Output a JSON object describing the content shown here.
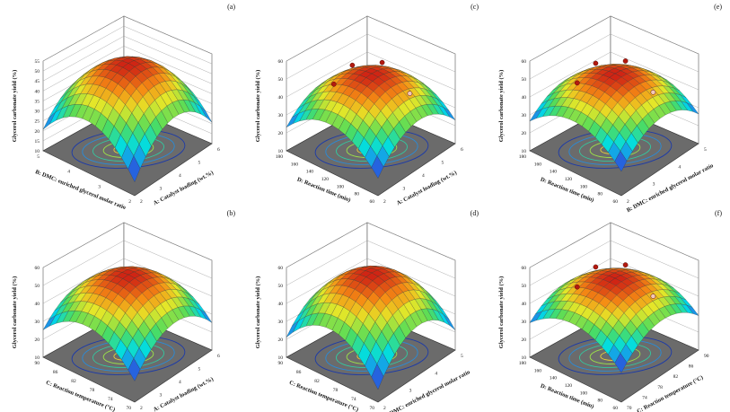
{
  "figure": {
    "panels": [
      {
        "label": "(a)",
        "zlabel": "Glycerol carbonate yield (%)",
        "xlabel": "A: Catalyst loading (wt.%)",
        "ylabel": "B: DMC: enriched glycerol molar ratio",
        "zticks": [
          "10",
          "15",
          "20",
          "25",
          "30",
          "35",
          "40",
          "45",
          "50",
          "55"
        ],
        "xticks": [
          "2",
          "3",
          "4",
          "5",
          "6"
        ],
        "yticks": [
          "2",
          "3",
          "4",
          "5"
        ],
        "design_points": 0
      },
      {
        "label": "(c)",
        "zlabel": "Glycerol carbonate yield (%)",
        "xlabel": "A: Catalyst loading (wt.%)",
        "ylabel": "D: Reaction time (min)",
        "zticks": [
          "10",
          "20",
          "30",
          "40",
          "50",
          "60"
        ],
        "xticks": [
          "2",
          "3",
          "4",
          "5",
          "6"
        ],
        "yticks": [
          "60",
          "80",
          "100",
          "120",
          "140",
          "160",
          "180"
        ],
        "design_points": 4
      },
      {
        "label": "(e)",
        "zlabel": "Glycerol carbonate yield (%)",
        "xlabel": "B: DMC: enriched glycerol molar ratio",
        "ylabel": "D: Reaction time (min)",
        "zticks": [
          "10",
          "20",
          "30",
          "40",
          "50",
          "60"
        ],
        "xticks": [
          "2",
          "3",
          "4",
          "5"
        ],
        "yticks": [
          "60",
          "80",
          "100",
          "120",
          "140",
          "160",
          "180"
        ],
        "design_points": 4
      },
      {
        "label": "(b)",
        "zlabel": "Glycerol carbonate yield (%)",
        "xlabel": "A: Catalyst loading (wt.%)",
        "ylabel": "C: Reaction temperature (°C)",
        "zticks": [
          "10",
          "20",
          "30",
          "40",
          "50",
          "60"
        ],
        "xticks": [
          "2",
          "3",
          "4",
          "5",
          "6"
        ],
        "yticks": [
          "70",
          "74",
          "78",
          "82",
          "86",
          "90"
        ],
        "design_points": 0
      },
      {
        "label": "(d)",
        "zlabel": "Glycerol carbonate yield (%)",
        "xlabel": "B: DMC: enriched glycerol molar ratio",
        "ylabel": "C: Reaction temperature (°C)",
        "zticks": [
          "10",
          "20",
          "30",
          "40",
          "50",
          "60"
        ],
        "xticks": [
          "2",
          "3",
          "4",
          "5"
        ],
        "yticks": [
          "70",
          "74",
          "78",
          "82",
          "86",
          "90"
        ],
        "design_points": 0
      },
      {
        "label": "(f)",
        "zlabel": "Glycerol carbonate yield (%)",
        "xlabel": "C: Reaction temperature (°C)",
        "ylabel": "D: Reaction time (min)",
        "zticks": [
          "10",
          "20",
          "30",
          "40",
          "50",
          "60"
        ],
        "xticks": [
          "70",
          "74",
          "78",
          "82",
          "86",
          "90"
        ],
        "yticks": [
          "60",
          "80",
          "100",
          "120",
          "140",
          "160",
          "180"
        ],
        "design_points": 4
      }
    ]
  },
  "chart_data": [
    {
      "type": "surface",
      "panel": "(a)",
      "x_var": "A: Catalyst loading (wt.%)",
      "y_var": "B: DMC: enriched glycerol molar ratio",
      "xlim": [
        2,
        6
      ],
      "ylim": [
        2,
        5
      ],
      "zlim": [
        10,
        55
      ],
      "peak_yield": 53,
      "peak_x": 4,
      "peak_y": 3.5,
      "min_yield": 15
    },
    {
      "type": "surface",
      "panel": "(c)",
      "x_var": "A: Catalyst loading (wt.%)",
      "y_var": "D: Reaction time (min)",
      "xlim": [
        2,
        6
      ],
      "ylim": [
        60,
        180
      ],
      "zlim": [
        10,
        60
      ],
      "peak_yield": 52,
      "peak_x": 4,
      "peak_y": 120,
      "min_yield": 18
    },
    {
      "type": "surface",
      "panel": "(e)",
      "x_var": "B: DMC: enriched glycerol molar ratio",
      "y_var": "D: Reaction time (min)",
      "xlim": [
        2,
        5
      ],
      "ylim": [
        60,
        180
      ],
      "zlim": [
        10,
        60
      ],
      "peak_yield": 52,
      "peak_x": 3.5,
      "peak_y": 120,
      "min_yield": 22
    },
    {
      "type": "surface",
      "panel": "(b)",
      "x_var": "A: Catalyst loading (wt.%)",
      "y_var": "C: Reaction temperature (°C)",
      "xlim": [
        2,
        6
      ],
      "ylim": [
        70,
        90
      ],
      "zlim": [
        10,
        60
      ],
      "peak_yield": 55,
      "peak_x": 4,
      "peak_y": 80,
      "min_yield": 20
    },
    {
      "type": "surface",
      "panel": "(d)",
      "x_var": "B: DMC: enriched glycerol molar ratio",
      "y_var": "C: Reaction temperature (°C)",
      "xlim": [
        2,
        5
      ],
      "ylim": [
        70,
        90
      ],
      "zlim": [
        10,
        60
      ],
      "peak_yield": 56,
      "peak_x": 3.5,
      "peak_y": 80,
      "min_yield": 15
    },
    {
      "type": "surface",
      "panel": "(f)",
      "x_var": "C: Reaction temperature (°C)",
      "y_var": "D: Reaction time (min)",
      "xlim": [
        70,
        90
      ],
      "ylim": [
        60,
        180
      ],
      "zlim": [
        10,
        60
      ],
      "peak_yield": 53,
      "peak_x": 80,
      "peak_y": 120,
      "min_yield": 25
    }
  ]
}
